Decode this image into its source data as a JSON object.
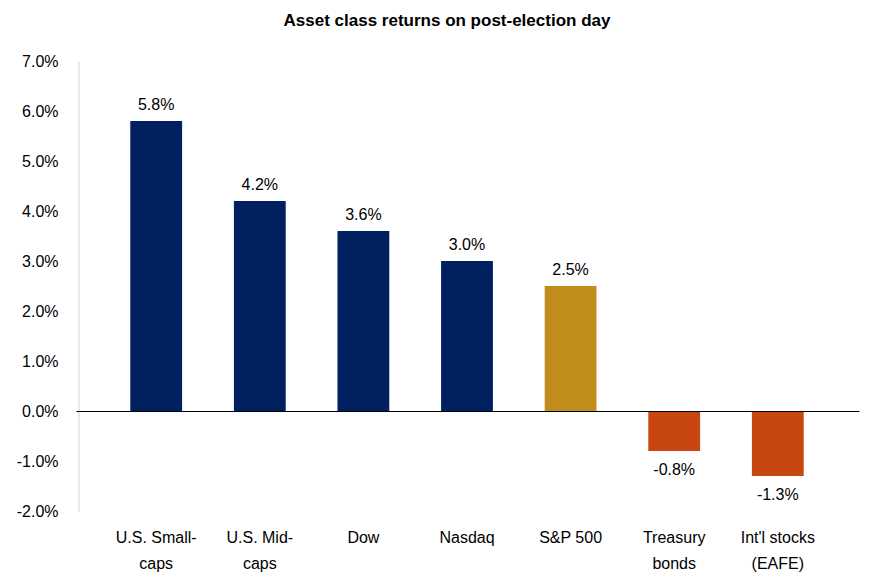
{
  "chart_data": {
    "type": "bar",
    "title": "Asset class returns on post-election day",
    "categories": [
      "U.S. Small-caps",
      "U.S. Mid-caps",
      "Dow",
      "Nasdaq",
      "S&P 500",
      "Treasury bonds",
      "Int'l stocks (EAFE)"
    ],
    "values": [
      5.8,
      4.2,
      3.6,
      3.0,
      2.5,
      -0.8,
      -1.3
    ],
    "value_labels": [
      "5.8%",
      "4.2%",
      "3.6%",
      "3.0%",
      "2.5%",
      "-0.8%",
      "-1.3%"
    ],
    "colors": [
      "#002060",
      "#002060",
      "#002060",
      "#002060",
      "#c08c1c",
      "#c8460f",
      "#c8460f"
    ],
    "data_labels": true,
    "grid": false,
    "ylim": [
      -2,
      7
    ],
    "yticks": [
      {
        "value": -2,
        "label": "-2.0%"
      },
      {
        "value": -1,
        "label": "-1.0%"
      },
      {
        "value": 0,
        "label": "0.0%"
      },
      {
        "value": 1,
        "label": "1.0%"
      },
      {
        "value": 2,
        "label": "2.0%"
      },
      {
        "value": 3,
        "label": "3.0%"
      },
      {
        "value": 4,
        "label": "4.0%"
      },
      {
        "value": 5,
        "label": "5.0%"
      },
      {
        "value": 6,
        "label": "6.0%"
      },
      {
        "value": 7,
        "label": "7.0%"
      }
    ]
  }
}
